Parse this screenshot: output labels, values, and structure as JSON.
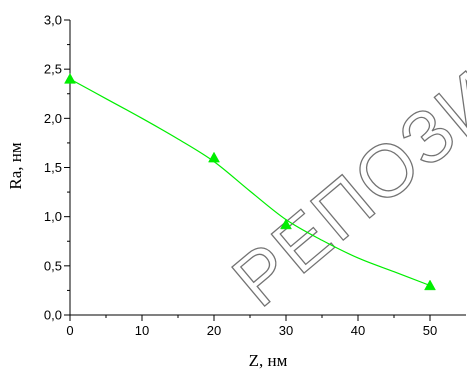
{
  "chart_data": {
    "type": "line",
    "title": "",
    "xlabel": "Z, нм",
    "ylabel": "Ra, нм",
    "xlim": [
      0,
      55
    ],
    "ylim": [
      0,
      3.0
    ],
    "x_ticks": [
      "0",
      "10",
      "20",
      "30",
      "40",
      "50"
    ],
    "x_tick_values": [
      0,
      10,
      20,
      30,
      40,
      50
    ],
    "y_ticks": [
      "0,0",
      "0,5",
      "1,0",
      "1,5",
      "2,0",
      "2,5",
      "3,0"
    ],
    "y_tick_values": [
      0,
      0.5,
      1.0,
      1.5,
      2.0,
      2.5,
      3.0
    ],
    "grid": false,
    "series": [
      {
        "color": "#00ee00",
        "marker": "triangle",
        "points": [
          {
            "x": 0,
            "y": 2.4
          },
          {
            "x": 20,
            "y": 1.6
          },
          {
            "x": 30,
            "y": 0.92
          },
          {
            "x": 50,
            "y": 0.3
          }
        ],
        "fit": [
          {
            "x": 0,
            "y": 2.4
          },
          {
            "x": 5,
            "y": 2.2
          },
          {
            "x": 10,
            "y": 2.0
          },
          {
            "x": 15,
            "y": 1.79
          },
          {
            "x": 20,
            "y": 1.56
          },
          {
            "x": 25,
            "y": 1.26
          },
          {
            "x": 30,
            "y": 0.97
          },
          {
            "x": 35,
            "y": 0.76
          },
          {
            "x": 40,
            "y": 0.58
          },
          {
            "x": 45,
            "y": 0.44
          },
          {
            "x": 50,
            "y": 0.3
          }
        ]
      }
    ]
  },
  "watermark": "РЕПОЗИ"
}
